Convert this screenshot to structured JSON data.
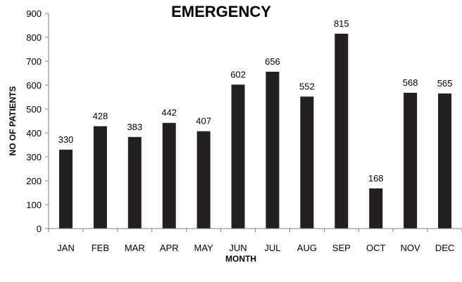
{
  "chart_data": {
    "type": "bar",
    "title": "EMERGENCY",
    "xlabel": "MONTH",
    "ylabel": "NO OF PATIENTS",
    "categories": [
      "JAN",
      "FEB",
      "MAR",
      "APR",
      "MAY",
      "JUN",
      "JUL",
      "AUG",
      "SEP",
      "OCT",
      "NOV",
      "DEC"
    ],
    "values": [
      330,
      428,
      383,
      442,
      407,
      602,
      656,
      552,
      815,
      168,
      568,
      565
    ],
    "data_labels": [
      "330",
      "428",
      "383",
      "442",
      "407",
      "602",
      "656",
      "552",
      "815",
      "168",
      "568",
      "565"
    ],
    "ylim": [
      0,
      900
    ],
    "yticks": [
      0,
      100,
      200,
      300,
      400,
      500,
      600,
      700,
      800,
      900
    ],
    "ytick_labels": [
      "0",
      "100",
      "200",
      "300",
      "400",
      "500",
      "600",
      "700",
      "800",
      "900"
    ],
    "grid": false,
    "legend": "none",
    "bar_color": "#231f20"
  }
}
